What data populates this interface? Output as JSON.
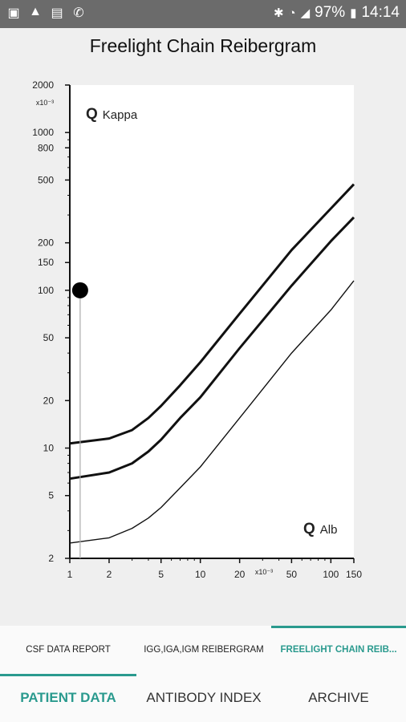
{
  "status": {
    "left_icons": [
      "gallery-icon",
      "warning-icon",
      "sim-icon",
      "missed-call-icon"
    ],
    "battery": "97%",
    "time": "14:14"
  },
  "title": "Freelight Chain Reibergram",
  "chart_data": {
    "type": "line",
    "title": "Freelight Chain Reibergram",
    "xlabel": "Q Alb",
    "ylabel": "Q Kappa",
    "x_unit_label": "x10⁻³",
    "y_unit_label": "x10⁻³",
    "xscale": "log",
    "yscale": "log",
    "xlim": [
      1,
      150
    ],
    "ylim": [
      2,
      2000
    ],
    "x_ticks": [
      1,
      2,
      5,
      10,
      20,
      50,
      100,
      150
    ],
    "y_ticks": [
      2,
      5,
      10,
      20,
      50,
      100,
      150,
      200,
      500,
      800,
      1000,
      2000
    ],
    "x_tick_labels": [
      "1",
      "2",
      "5",
      "10",
      "20",
      "50",
      "100",
      "150"
    ],
    "y_tick_labels": [
      "2",
      "5",
      "10",
      "20",
      "50",
      "100",
      "150",
      "200",
      "500",
      "800",
      "1000",
      "2000"
    ],
    "series": [
      {
        "style": "thick",
        "points": [
          [
            1,
            10.7
          ],
          [
            2,
            11.5
          ],
          [
            3,
            13
          ],
          [
            4,
            15.5
          ],
          [
            5,
            18.5
          ],
          [
            7,
            25
          ],
          [
            10,
            35
          ],
          [
            20,
            71
          ],
          [
            50,
            180
          ],
          [
            100,
            330
          ],
          [
            150,
            470
          ]
        ]
      },
      {
        "style": "thick",
        "points": [
          [
            1,
            6.4
          ],
          [
            2,
            7.0
          ],
          [
            3,
            8.0
          ],
          [
            4,
            9.5
          ],
          [
            5,
            11.3
          ],
          [
            7,
            15.5
          ],
          [
            10,
            21
          ],
          [
            20,
            43
          ],
          [
            50,
            107
          ],
          [
            100,
            205
          ],
          [
            150,
            290
          ]
        ]
      },
      {
        "style": "thin",
        "points": [
          [
            1,
            2.5
          ],
          [
            2,
            2.7
          ],
          [
            3,
            3.1
          ],
          [
            4,
            3.6
          ],
          [
            5,
            4.2
          ],
          [
            7,
            5.6
          ],
          [
            10,
            7.6
          ],
          [
            20,
            15.5
          ],
          [
            50,
            40
          ],
          [
            100,
            75
          ],
          [
            150,
            115
          ]
        ]
      }
    ],
    "marker": {
      "x": 1.2,
      "y": 100
    },
    "grid": false,
    "legend": "none"
  },
  "tabs_top": [
    {
      "label": "CSF DATA REPORT",
      "active": false
    },
    {
      "label": "IGG,IGA,IGM REIBERGRAM",
      "active": false
    },
    {
      "label": "FREELIGHT CHAIN REIB...",
      "active": true
    }
  ],
  "tabs_bottom": [
    {
      "label": "PATIENT DATA",
      "active": true
    },
    {
      "label": "ANTIBODY INDEX",
      "active": false
    },
    {
      "label": "ARCHIVE",
      "active": false
    }
  ]
}
